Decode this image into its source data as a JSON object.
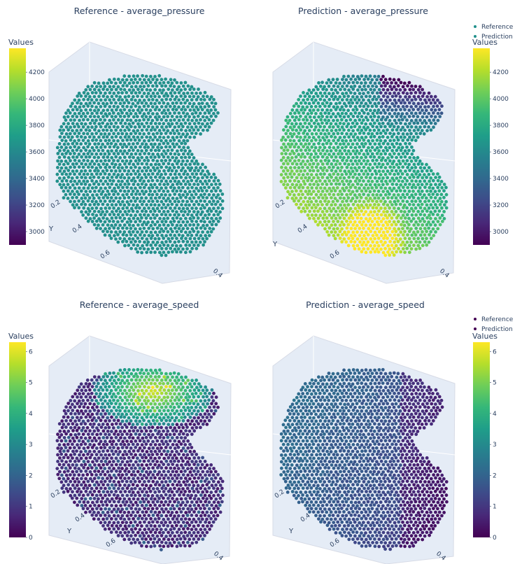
{
  "charts": [
    {
      "chart_data": {
        "type": "scatter",
        "dimension": "3d",
        "title": "Reference - average_pressure",
        "colorbar": {
          "title": "Values",
          "ticks": [
            3000,
            3200,
            3400,
            3600,
            3800,
            4000,
            4200
          ],
          "range": [
            2900,
            4380
          ],
          "colorscale": "viridis"
        },
        "axes": {
          "y_label": "Y",
          "y_ticks": [
            "0.2",
            "0.4",
            "0.6"
          ],
          "x_ticks": [
            "0.4"
          ]
        },
        "field": "uniform",
        "value_estimate": 3650
      }
    },
    {
      "chart_data": {
        "type": "scatter",
        "dimension": "3d",
        "title": "Prediction - average_pressure",
        "colorbar": {
          "title": "Values",
          "ticks": [
            3000,
            3200,
            3400,
            3600,
            3800,
            4000,
            4200
          ],
          "range": [
            2900,
            4380
          ],
          "colorscale": "viridis"
        },
        "axes": {
          "y_label": "Y",
          "y_ticks": [
            "0.2",
            "0.4",
            "0.6"
          ],
          "x_ticks": [
            "0.4"
          ]
        },
        "legend": {
          "entries": [
            "Reference",
            "Prediction"
          ],
          "position": "top-right"
        },
        "field": "gradient-high-bottom-low-top-right"
      }
    },
    {
      "chart_data": {
        "type": "scatter",
        "dimension": "3d",
        "title": "Reference - average_speed",
        "colorbar": {
          "title": "Values",
          "ticks": [
            0,
            1,
            2,
            3,
            4,
            5,
            6
          ],
          "range": [
            0,
            6.3
          ],
          "colorscale": "viridis"
        },
        "axes": {
          "y_label": "Y",
          "y_ticks": [
            "0.2",
            "0.4",
            "0.6"
          ],
          "x_ticks": [
            "0.4"
          ]
        },
        "field": "hot-top-cap"
      }
    },
    {
      "chart_data": {
        "type": "scatter",
        "dimension": "3d",
        "title": "Prediction - average_speed",
        "colorbar": {
          "title": "Values",
          "ticks": [
            0,
            1,
            2,
            3,
            4,
            5,
            6
          ],
          "range": [
            0,
            6.3
          ],
          "colorscale": "viridis"
        },
        "axes": {
          "y_label": "Y",
          "y_ticks": [
            "0.2",
            "0.4",
            "0.6"
          ],
          "x_ticks": [
            "0.4"
          ]
        },
        "legend": {
          "entries": [
            "Reference",
            "Prediction"
          ],
          "position": "top-right"
        },
        "field": "mild-gradient"
      }
    }
  ],
  "colors": {
    "viridis": [
      "#440154",
      "#482878",
      "#3e4a89",
      "#31688e",
      "#26828e",
      "#1f9e89",
      "#35b779",
      "#6ece58",
      "#b5de2b",
      "#fde725"
    ],
    "legend_pressure_dot": "#21918c",
    "legend_speed_dot": "#440154",
    "scene_grid": "#d7dbe6"
  }
}
